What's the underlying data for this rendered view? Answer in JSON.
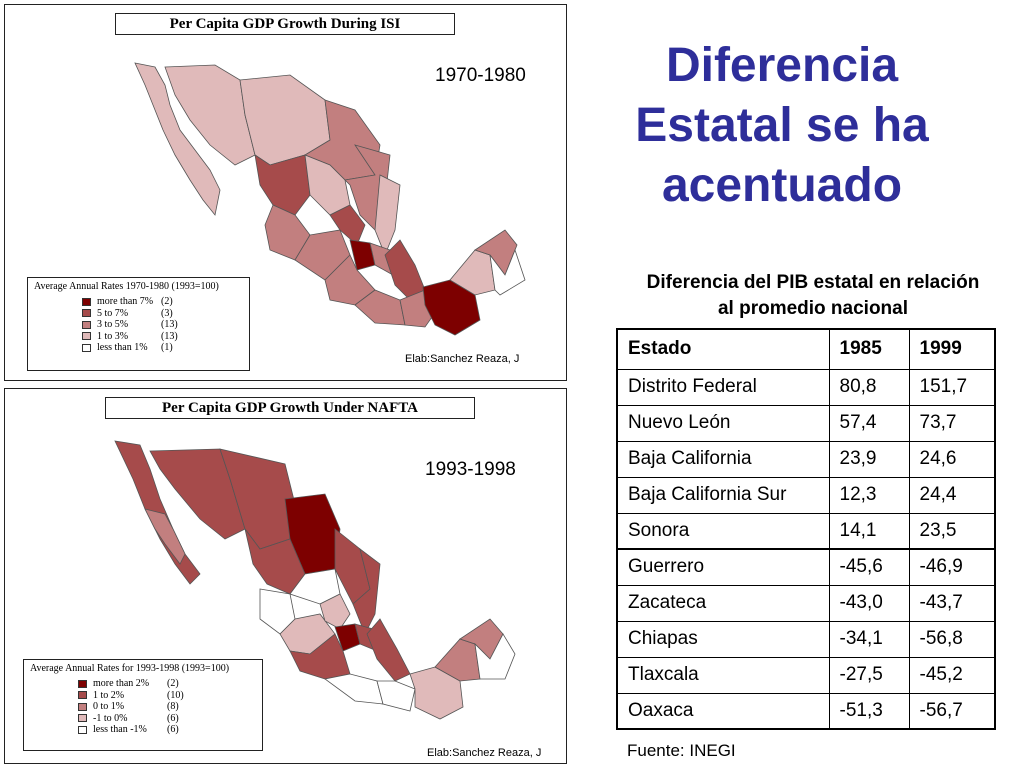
{
  "colors": {
    "level1": "#7d0000",
    "level2": "#a64b4b",
    "level3": "#c27f7f",
    "level4": "#e0baba",
    "level5": "#ffffff",
    "title_blue": "#2e2e9a"
  },
  "map_top": {
    "title": "Per Capita GDP Growth During ISI",
    "period": "1970-1980",
    "credit": "Elab:Sanchez Reaza, J",
    "legend_title": "Average Annual Rates 1970-1980 (1993=100)",
    "legend": [
      {
        "label": "more than 7%",
        "count": "(2)"
      },
      {
        "label": "5 to 7%",
        "count": "(3)"
      },
      {
        "label": "3 to 5%",
        "count": "(13)"
      },
      {
        "label": "1 to 3%",
        "count": "(13)"
      },
      {
        "label": "less than 1%",
        "count": "(1)"
      }
    ]
  },
  "map_bottom": {
    "title": "Per Capita GDP Growth Under NAFTA",
    "period": "1993-1998",
    "credit": "Elab:Sanchez Reaza, J",
    "legend_title": "Average Annual Rates for 1993-1998 (1993=100)",
    "legend": [
      {
        "label": "more than 2%",
        "count": "(2)"
      },
      {
        "label": "1 to 2%",
        "count": "(10)"
      },
      {
        "label": "0 to 1%",
        "count": "(8)"
      },
      {
        "label": "-1 to 0%",
        "count": "(6)"
      },
      {
        "label": "less than -1%",
        "count": "(6)"
      }
    ]
  },
  "main_title": {
    "line1": "Diferencia",
    "line2": "Estatal se ha",
    "line3": "acentuado"
  },
  "table": {
    "caption_line1": "Diferencia del PIB estatal en relación",
    "caption_line2": "al promedio nacional",
    "headers": [
      "Estado",
      "1985",
      "1999"
    ],
    "rows": [
      [
        "Distrito Federal",
        "80,8",
        "151,7"
      ],
      [
        "Nuevo León",
        "57,4",
        "73,7"
      ],
      [
        "Baja California",
        "23,9",
        "24,6"
      ],
      [
        "Baja California Sur",
        "12,3",
        "24,4"
      ],
      [
        "Sonora",
        "14,1",
        "23,5"
      ],
      [
        "Guerrero",
        "-45,6",
        "-46,9"
      ],
      [
        "Zacateca",
        "-43,0",
        "-43,7"
      ],
      [
        "Chiapas",
        "-34,1",
        "-56,8"
      ],
      [
        "Tlaxcala",
        "-27,5",
        "-45,2"
      ],
      [
        "Oaxaca",
        "-51,3",
        "-56,7"
      ]
    ],
    "source": "Fuente: INEGI"
  }
}
